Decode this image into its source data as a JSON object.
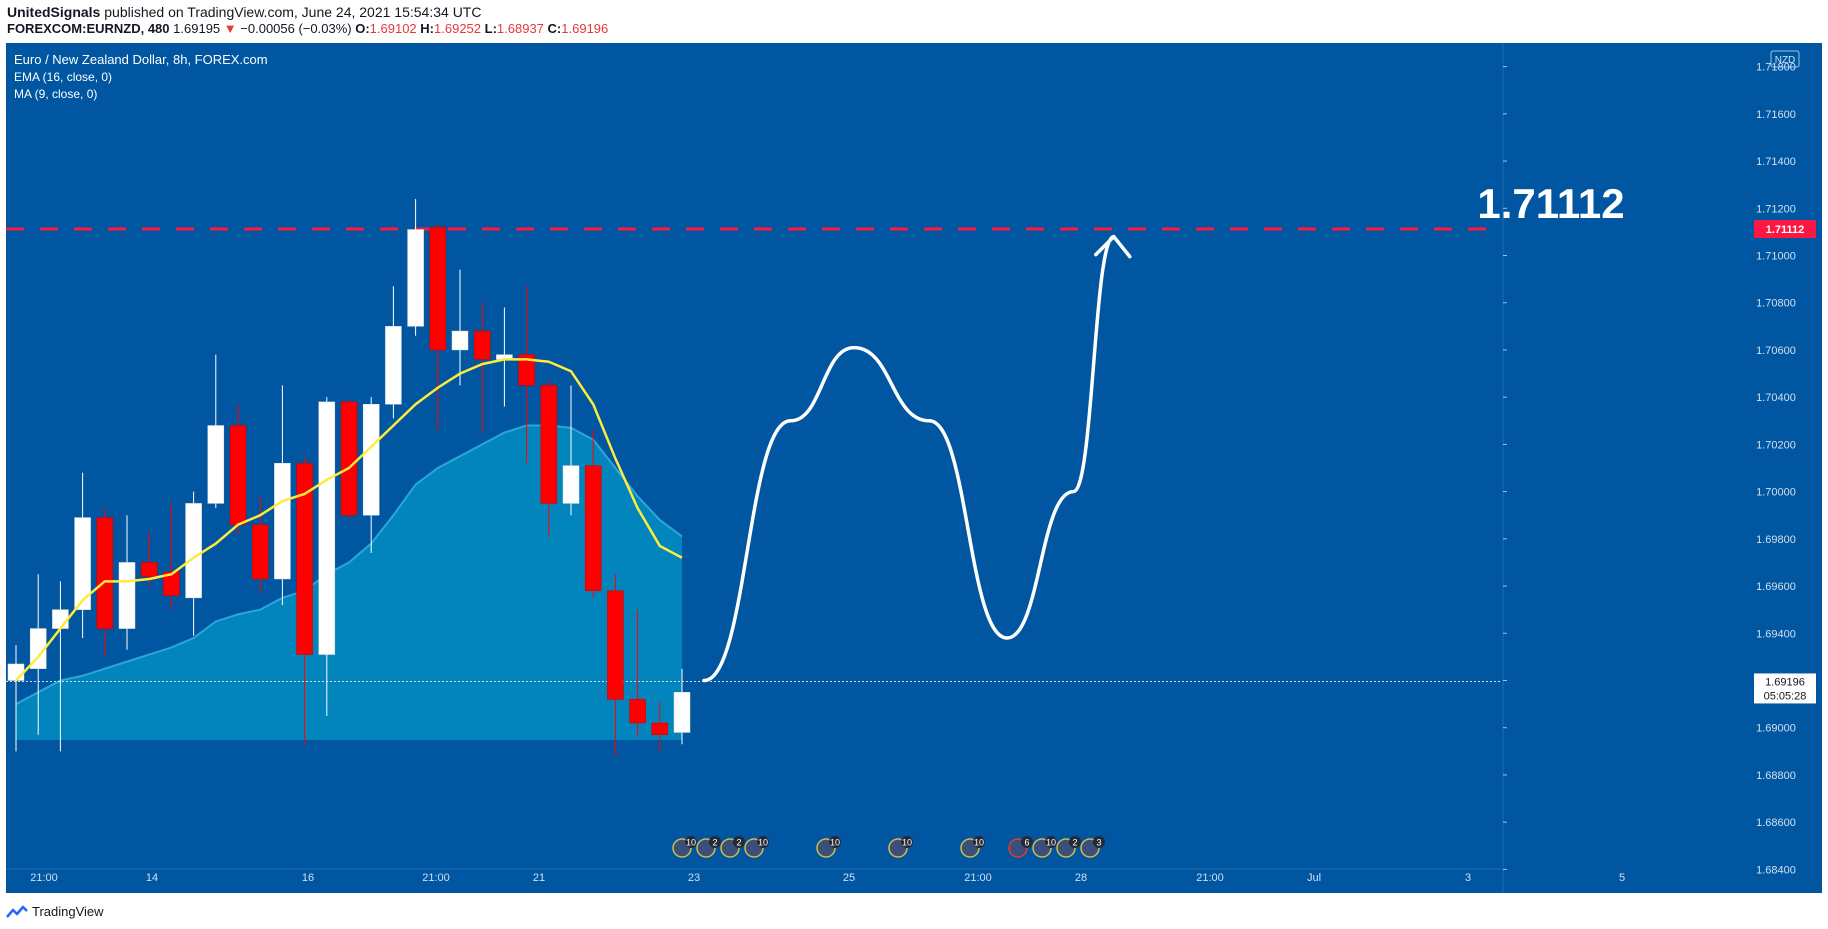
{
  "header": {
    "author": "UnitedSignals",
    "published": "published on TradingView.com, June 24, 2021 15:54:34 UTC",
    "symbol": "FOREXCOM:EURNZD, 480",
    "last": "1.69195",
    "arrow": "▼",
    "change": "−0.00056 (−0.03%)",
    "o_label": "O:",
    "o": "1.69102",
    "h_label": "H:",
    "h": "1.69252",
    "l_label": "L:",
    "l": "1.68937",
    "c_label": "C:",
    "c": "1.69196"
  },
  "legend": {
    "title": "Euro / New Zealand Dollar, 8h, FOREX.com",
    "ema": "EMA (16, close, 0)",
    "ma": "MA (9, close, 0)"
  },
  "currency": "NZD",
  "target_label": "1.71112",
  "price_tag": "1.71112",
  "last_tag": "1.69196",
  "countdown": "05:05:28",
  "footer_brand": "TradingView",
  "colors": {
    "background": "#0056a0",
    "bull": "#ffffff",
    "bear": "#ff0000",
    "ema_fill": "#0288bf",
    "ma_line": "#ffeb3b",
    "target_line": "#ff1744",
    "projection": "#ffffff"
  },
  "chart_data": {
    "type": "candlestick",
    "ylim": [
      1.683,
      1.719
    ],
    "y_ticks": [
      "1.71800",
      "1.71600",
      "1.71400",
      "1.71200",
      "1.71000",
      "1.70800",
      "1.70600",
      "1.70400",
      "1.70200",
      "1.70000",
      "1.69800",
      "1.69600",
      "1.69400",
      "1.69200",
      "1.69000",
      "1.68800",
      "1.68600",
      "1.68400"
    ],
    "x_ticks": [
      "21:00",
      "14",
      "16",
      "21:00",
      "21",
      "23",
      "25",
      "21:00",
      "28",
      "21:00",
      "Jul",
      "3",
      "5"
    ],
    "candles": [
      {
        "o": 1.692,
        "h": 1.6935,
        "l": 1.689,
        "c": 1.6927
      },
      {
        "o": 1.6925,
        "h": 1.6965,
        "l": 1.6897,
        "c": 1.6942
      },
      {
        "o": 1.6942,
        "h": 1.6962,
        "l": 1.689,
        "c": 1.695
      },
      {
        "o": 1.695,
        "h": 1.7008,
        "l": 1.6938,
        "c": 1.6989
      },
      {
        "o": 1.6989,
        "h": 1.6993,
        "l": 1.693,
        "c": 1.6942
      },
      {
        "o": 1.6942,
        "h": 1.699,
        "l": 1.6933,
        "c": 1.697
      },
      {
        "o": 1.697,
        "h": 1.6983,
        "l": 1.696,
        "c": 1.6964
      },
      {
        "o": 1.6966,
        "h": 1.6995,
        "l": 1.695,
        "c": 1.6956
      },
      {
        "o": 1.6955,
        "h": 1.7,
        "l": 1.6939,
        "c": 1.6995
      },
      {
        "o": 1.6995,
        "h": 1.7058,
        "l": 1.6993,
        "c": 1.7028
      },
      {
        "o": 1.7028,
        "h": 1.7037,
        "l": 1.6982,
        "c": 1.6986
      },
      {
        "o": 1.6986,
        "h": 1.6998,
        "l": 1.6957,
        "c": 1.6963
      },
      {
        "o": 1.6963,
        "h": 1.7045,
        "l": 1.6952,
        "c": 1.7012
      },
      {
        "o": 1.7012,
        "h": 1.7015,
        "l": 1.6893,
        "c": 1.6931
      },
      {
        "o": 1.6931,
        "h": 1.704,
        "l": 1.6905,
        "c": 1.7038
      },
      {
        "o": 1.7038,
        "h": 1.7039,
        "l": 1.6988,
        "c": 1.699
      },
      {
        "o": 1.699,
        "h": 1.704,
        "l": 1.6974,
        "c": 1.7037
      },
      {
        "o": 1.7037,
        "h": 1.7087,
        "l": 1.7031,
        "c": 1.707
      },
      {
        "o": 1.707,
        "h": 1.7124,
        "l": 1.7066,
        "c": 1.7111
      },
      {
        "o": 1.7112,
        "h": 1.7113,
        "l": 1.7026,
        "c": 1.706
      },
      {
        "o": 1.706,
        "h": 1.7094,
        "l": 1.7045,
        "c": 1.7068
      },
      {
        "o": 1.7068,
        "h": 1.708,
        "l": 1.7025,
        "c": 1.7056
      },
      {
        "o": 1.7056,
        "h": 1.7078,
        "l": 1.7036,
        "c": 1.7058
      },
      {
        "o": 1.7058,
        "h": 1.7087,
        "l": 1.7012,
        "c": 1.7045
      },
      {
        "o": 1.7045,
        "h": 1.7047,
        "l": 1.6981,
        "c": 1.6995
      },
      {
        "o": 1.6995,
        "h": 1.7045,
        "l": 1.699,
        "c": 1.7011
      },
      {
        "o": 1.7011,
        "h": 1.7026,
        "l": 1.6955,
        "c": 1.6958
      },
      {
        "o": 1.6958,
        "h": 1.6965,
        "l": 1.6888,
        "c": 1.6912
      },
      {
        "o": 1.6912,
        "h": 1.695,
        "l": 1.6896,
        "c": 1.6902
      },
      {
        "o": 1.6902,
        "h": 1.6911,
        "l": 1.689,
        "c": 1.6897
      },
      {
        "o": 1.6898,
        "h": 1.6925,
        "l": 1.6893,
        "c": 1.6915
      }
    ],
    "ma9": [
      1.692,
      1.693,
      1.6942,
      1.6954,
      1.6962,
      1.6962,
      1.6963,
      1.6965,
      1.6972,
      1.6978,
      1.6986,
      1.699,
      1.6996,
      1.6999,
      1.7005,
      1.701,
      1.7019,
      1.7028,
      1.7037,
      1.7044,
      1.705,
      1.7054,
      1.7056,
      1.7056,
      1.7055,
      1.7051,
      1.7037,
      1.7014,
      1.6993,
      1.6977,
      1.6972
    ],
    "ema16": [
      1.691,
      1.6915,
      1.692,
      1.6922,
      1.6925,
      1.6928,
      1.6931,
      1.6934,
      1.6938,
      1.6945,
      1.6948,
      1.695,
      1.6955,
      1.6958,
      1.6965,
      1.697,
      1.6978,
      1.699,
      1.7003,
      1.701,
      1.7015,
      1.702,
      1.7025,
      1.7028,
      1.7028,
      1.7027,
      1.7022,
      1.701,
      1.6998,
      1.6988,
      1.6981
    ],
    "target": 1.71112,
    "last_price": 1.69196,
    "projection": [
      [
        0,
        1.692
      ],
      [
        3,
        1.703
      ],
      [
        5.2,
        1.7061
      ],
      [
        7.8,
        1.703
      ],
      [
        10.5,
        1.6938
      ],
      [
        12.8,
        1.7
      ],
      [
        14.2,
        1.7108
      ]
    ],
    "event_icons": [
      "10",
      "2",
      "2",
      "10",
      "10",
      "10",
      "10",
      "6",
      "10",
      "2",
      "3"
    ]
  }
}
